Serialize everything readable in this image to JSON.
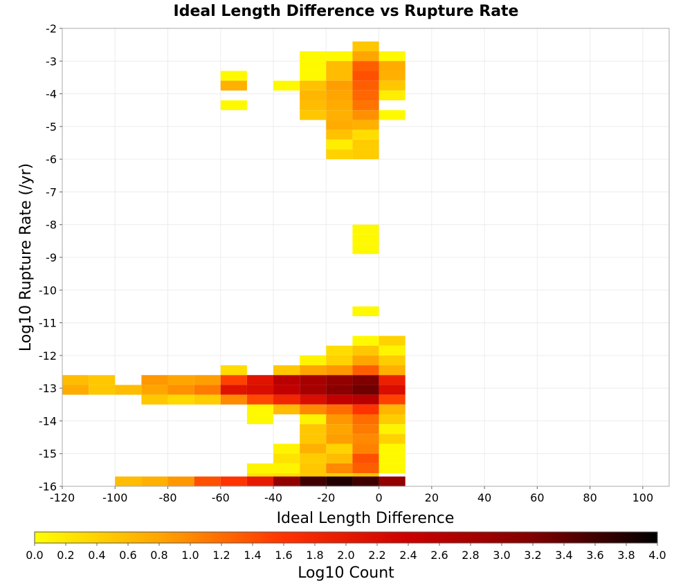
{
  "chart_data": {
    "type": "heatmap",
    "title": "Ideal Length Difference vs Rupture Rate",
    "xlabel": "Ideal Length Difference",
    "ylabel": "Log10 Rupture Rate (/yr)",
    "xlim": [
      -120,
      110
    ],
    "ylim": [
      -16,
      -2
    ],
    "x_ticks": [
      "-120",
      "-100",
      "-80",
      "-60",
      "-40",
      "-20",
      "0",
      "20",
      "40",
      "60",
      "80",
      "100"
    ],
    "y_ticks": [
      "-2",
      "-3",
      "-4",
      "-5",
      "-6",
      "-7",
      "-8",
      "-9",
      "-10",
      "-11",
      "-12",
      "-13",
      "-14",
      "-15",
      "-16"
    ],
    "grid": true,
    "colorbar": {
      "label": "Log10 Count",
      "range": [
        0.0,
        4.0
      ],
      "ticks": [
        "0.0",
        "0.2",
        "0.4",
        "0.6",
        "0.8",
        "1.0",
        "1.2",
        "1.4",
        "1.6",
        "1.8",
        "2.0",
        "2.2",
        "2.4",
        "2.6",
        "2.8",
        "3.0",
        "3.2",
        "3.4",
        "3.6",
        "3.8",
        "4.0"
      ],
      "colors": [
        "#ffff00",
        "#ffa500",
        "#ff3300",
        "#cc0000",
        "#800000",
        "#000000"
      ]
    },
    "bin_width_x": 10,
    "bin_height_y": 0.3,
    "cells": [
      {
        "x": -10,
        "y": -2.7,
        "v": 0.5
      },
      {
        "x": -30,
        "y": -3.0,
        "v": 0.05
      },
      {
        "x": -20,
        "y": -3.0,
        "v": 0.05
      },
      {
        "x": -10,
        "y": -3.0,
        "v": 0.8
      },
      {
        "x": 0,
        "y": -3.0,
        "v": 0.05
      },
      {
        "x": -30,
        "y": -3.3,
        "v": 0.05
      },
      {
        "x": -20,
        "y": -3.3,
        "v": 0.6
      },
      {
        "x": -10,
        "y": -3.3,
        "v": 1.3
      },
      {
        "x": 0,
        "y": -3.3,
        "v": 0.75
      },
      {
        "x": -60,
        "y": -3.6,
        "v": 0.05
      },
      {
        "x": -30,
        "y": -3.6,
        "v": 0.05
      },
      {
        "x": -20,
        "y": -3.6,
        "v": 0.6
      },
      {
        "x": -10,
        "y": -3.6,
        "v": 1.4
      },
      {
        "x": 0,
        "y": -3.6,
        "v": 0.7
      },
      {
        "x": -60,
        "y": -3.9,
        "v": 0.7
      },
      {
        "x": -40,
        "y": -3.9,
        "v": 0.05
      },
      {
        "x": -30,
        "y": -3.9,
        "v": 0.55
      },
      {
        "x": -20,
        "y": -3.9,
        "v": 0.85
      },
      {
        "x": -10,
        "y": -3.9,
        "v": 1.3
      },
      {
        "x": 0,
        "y": -3.9,
        "v": 0.5
      },
      {
        "x": -30,
        "y": -4.2,
        "v": 0.65
      },
      {
        "x": -20,
        "y": -4.2,
        "v": 0.8
      },
      {
        "x": -10,
        "y": -4.2,
        "v": 1.25
      },
      {
        "x": 0,
        "y": -4.2,
        "v": 0.15
      },
      {
        "x": -60,
        "y": -4.5,
        "v": 0.05
      },
      {
        "x": -30,
        "y": -4.5,
        "v": 0.6
      },
      {
        "x": -20,
        "y": -4.5,
        "v": 0.75
      },
      {
        "x": -10,
        "y": -4.5,
        "v": 1.15
      },
      {
        "x": -30,
        "y": -4.8,
        "v": 0.5
      },
      {
        "x": -20,
        "y": -4.8,
        "v": 0.7
      },
      {
        "x": -10,
        "y": -4.8,
        "v": 0.95
      },
      {
        "x": 0,
        "y": -4.8,
        "v": 0.05
      },
      {
        "x": -20,
        "y": -5.1,
        "v": 0.75
      },
      {
        "x": -10,
        "y": -5.1,
        "v": 0.7
      },
      {
        "x": -20,
        "y": -5.4,
        "v": 0.55
      },
      {
        "x": -10,
        "y": -5.4,
        "v": 0.3
      },
      {
        "x": -20,
        "y": -5.7,
        "v": 0.15
      },
      {
        "x": -10,
        "y": -5.7,
        "v": 0.45
      },
      {
        "x": -20,
        "y": -6.0,
        "v": 0.4
      },
      {
        "x": -10,
        "y": -6.0,
        "v": 0.45
      },
      {
        "x": -10,
        "y": -8.3,
        "v": 0.05
      },
      {
        "x": -10,
        "y": -8.6,
        "v": 0.05
      },
      {
        "x": -10,
        "y": -8.9,
        "v": 0.05
      },
      {
        "x": -10,
        "y": -10.8,
        "v": 0.05
      },
      {
        "x": -10,
        "y": -11.7,
        "v": 0.05
      },
      {
        "x": 0,
        "y": -11.7,
        "v": 0.4
      },
      {
        "x": -20,
        "y": -12.0,
        "v": 0.3
      },
      {
        "x": -10,
        "y": -12.0,
        "v": 0.5
      },
      {
        "x": 0,
        "y": -12.0,
        "v": 0.1
      },
      {
        "x": -30,
        "y": -12.3,
        "v": 0.1
      },
      {
        "x": -20,
        "y": -12.3,
        "v": 0.4
      },
      {
        "x": -10,
        "y": -12.3,
        "v": 0.8
      },
      {
        "x": 0,
        "y": -12.3,
        "v": 0.45
      },
      {
        "x": -60,
        "y": -12.6,
        "v": 0.3
      },
      {
        "x": -40,
        "y": -12.6,
        "v": 0.5
      },
      {
        "x": -30,
        "y": -12.6,
        "v": 0.8
      },
      {
        "x": -20,
        "y": -12.6,
        "v": 0.9
      },
      {
        "x": -10,
        "y": -12.6,
        "v": 1.3
      },
      {
        "x": 0,
        "y": -12.6,
        "v": 0.7
      },
      {
        "x": -120,
        "y": -12.9,
        "v": 0.6
      },
      {
        "x": -110,
        "y": -12.9,
        "v": 0.5
      },
      {
        "x": -90,
        "y": -12.9,
        "v": 0.9
      },
      {
        "x": -80,
        "y": -12.9,
        "v": 0.8
      },
      {
        "x": -70,
        "y": -12.9,
        "v": 0.85
      },
      {
        "x": -60,
        "y": -12.9,
        "v": 1.5
      },
      {
        "x": -50,
        "y": -12.9,
        "v": 2.1
      },
      {
        "x": -40,
        "y": -12.9,
        "v": 2.6
      },
      {
        "x": -30,
        "y": -12.9,
        "v": 2.8
      },
      {
        "x": -20,
        "y": -12.9,
        "v": 3.0
      },
      {
        "x": -10,
        "y": -12.9,
        "v": 3.2
      },
      {
        "x": 0,
        "y": -12.9,
        "v": 1.9
      },
      {
        "x": -120,
        "y": -13.2,
        "v": 0.75
      },
      {
        "x": -110,
        "y": -13.2,
        "v": 0.5
      },
      {
        "x": -100,
        "y": -13.2,
        "v": 0.6
      },
      {
        "x": -90,
        "y": -13.2,
        "v": 0.8
      },
      {
        "x": -80,
        "y": -13.2,
        "v": 0.95
      },
      {
        "x": -70,
        "y": -13.2,
        "v": 1.1
      },
      {
        "x": -60,
        "y": -13.2,
        "v": 2.1
      },
      {
        "x": -50,
        "y": -13.2,
        "v": 2.2
      },
      {
        "x": -40,
        "y": -13.2,
        "v": 2.5
      },
      {
        "x": -30,
        "y": -13.2,
        "v": 2.8
      },
      {
        "x": -20,
        "y": -13.2,
        "v": 3.1
      },
      {
        "x": -10,
        "y": -13.2,
        "v": 3.3
      },
      {
        "x": 0,
        "y": -13.2,
        "v": 2.2
      },
      {
        "x": -90,
        "y": -13.5,
        "v": 0.5
      },
      {
        "x": -80,
        "y": -13.5,
        "v": 0.35
      },
      {
        "x": -70,
        "y": -13.5,
        "v": 0.45
      },
      {
        "x": -60,
        "y": -13.5,
        "v": 1.0
      },
      {
        "x": -50,
        "y": -13.5,
        "v": 1.45
      },
      {
        "x": -40,
        "y": -13.5,
        "v": 1.8
      },
      {
        "x": -30,
        "y": -13.5,
        "v": 2.2
      },
      {
        "x": -20,
        "y": -13.5,
        "v": 2.5
      },
      {
        "x": -10,
        "y": -13.5,
        "v": 2.6
      },
      {
        "x": 0,
        "y": -13.5,
        "v": 1.5
      },
      {
        "x": -50,
        "y": -13.8,
        "v": 0.05
      },
      {
        "x": -40,
        "y": -13.8,
        "v": 0.6
      },
      {
        "x": -30,
        "y": -13.8,
        "v": 1.0
      },
      {
        "x": -20,
        "y": -13.8,
        "v": 1.2
      },
      {
        "x": -10,
        "y": -13.8,
        "v": 1.6
      },
      {
        "x": 0,
        "y": -13.8,
        "v": 0.65
      },
      {
        "x": -50,
        "y": -14.1,
        "v": 0.05
      },
      {
        "x": -30,
        "y": -14.1,
        "v": 0.1
      },
      {
        "x": -20,
        "y": -14.1,
        "v": 0.9
      },
      {
        "x": -10,
        "y": -14.1,
        "v": 1.2
      },
      {
        "x": 0,
        "y": -14.1,
        "v": 0.45
      },
      {
        "x": -30,
        "y": -14.4,
        "v": 0.5
      },
      {
        "x": -20,
        "y": -14.4,
        "v": 0.8
      },
      {
        "x": -10,
        "y": -14.4,
        "v": 1.1
      },
      {
        "x": 0,
        "y": -14.4,
        "v": 0.1
      },
      {
        "x": -30,
        "y": -14.7,
        "v": 0.5
      },
      {
        "x": -20,
        "y": -14.7,
        "v": 0.85
      },
      {
        "x": -10,
        "y": -14.7,
        "v": 1.0
      },
      {
        "x": 0,
        "y": -14.7,
        "v": 0.4
      },
      {
        "x": -40,
        "y": -15.0,
        "v": 0.1
      },
      {
        "x": -30,
        "y": -15.0,
        "v": 0.7
      },
      {
        "x": -20,
        "y": -15.0,
        "v": 0.4
      },
      {
        "x": -10,
        "y": -15.0,
        "v": 1.05
      },
      {
        "x": 0,
        "y": -15.0,
        "v": 0.05
      },
      {
        "x": -40,
        "y": -15.3,
        "v": 0.25
      },
      {
        "x": -30,
        "y": -15.3,
        "v": 0.45
      },
      {
        "x": -20,
        "y": -15.3,
        "v": 0.6
      },
      {
        "x": -10,
        "y": -15.3,
        "v": 1.4
      },
      {
        "x": 0,
        "y": -15.3,
        "v": 0.05
      },
      {
        "x": -30,
        "y": -15.6,
        "v": 0.5
      },
      {
        "x": -20,
        "y": -15.6,
        "v": 1.0
      },
      {
        "x": -10,
        "y": -15.6,
        "v": 1.3
      },
      {
        "x": 0,
        "y": -15.6,
        "v": 0.05
      },
      {
        "x": -50,
        "y": -15.6,
        "v": 0.1
      },
      {
        "x": -40,
        "y": -15.6,
        "v": 0.1
      },
      {
        "x": -50,
        "y": -15.9,
        "v": 0.25
      },
      {
        "x": -40,
        "y": -15.9,
        "v": 0.3
      },
      {
        "x": -30,
        "y": -15.9,
        "v": 0.5
      },
      {
        "x": -20,
        "y": -15.9,
        "v": 0.45
      },
      {
        "x": -10,
        "y": -15.9,
        "v": 0.55
      },
      {
        "x": -100,
        "y": -16.0,
        "v": 0.6
      },
      {
        "x": -90,
        "y": -16.0,
        "v": 0.7
      },
      {
        "x": -80,
        "y": -16.0,
        "v": 0.9
      },
      {
        "x": -70,
        "y": -16.0,
        "v": 1.4
      },
      {
        "x": -60,
        "y": -16.0,
        "v": 1.6
      },
      {
        "x": -50,
        "y": -16.0,
        "v": 2.0
      },
      {
        "x": -40,
        "y": -16.0,
        "v": 3.0
      },
      {
        "x": -30,
        "y": -16.0,
        "v": 3.6
      },
      {
        "x": -20,
        "y": -16.0,
        "v": 3.8
      },
      {
        "x": -10,
        "y": -16.0,
        "v": 3.6
      },
      {
        "x": 0,
        "y": -16.0,
        "v": 3.0
      }
    ]
  }
}
